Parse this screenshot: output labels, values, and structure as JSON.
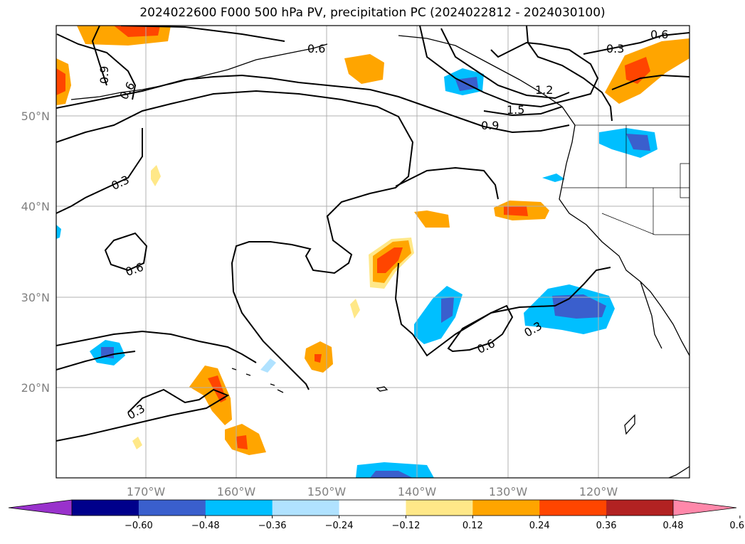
{
  "title": "2024022600 F000 500 hPa PV, precipitation PC (2024022812 - 2024030100)",
  "map": {
    "lon_range": [
      -180,
      -110
    ],
    "lat_range": [
      10,
      60
    ],
    "lon_ticks": [
      "170°W",
      "160°W",
      "150°W",
      "140°W",
      "130°W",
      "120°W"
    ],
    "lat_ticks": [
      "50°N",
      "40°N",
      "30°N",
      "20°N"
    ],
    "grid": true,
    "contour_labels": [
      "0.6",
      "0.9",
      "0.6",
      "0.3",
      "1.2",
      "1.5",
      "0.9",
      "0.3",
      "0.6",
      "0.6",
      "0.3",
      "0.3",
      "0.6",
      "0.6"
    ]
  },
  "colorbar": {
    "ticks": [
      "−0.60",
      "−0.48",
      "−0.36",
      "−0.24",
      "−0.12",
      "0.12",
      "0.24",
      "0.36",
      "0.48",
      "0.60"
    ],
    "colors": [
      "#9932cc",
      "#00008b",
      "#3a5fcd",
      "#00bfff",
      "#b0e2ff",
      "#ffffff",
      "#ffe888",
      "#ffa500",
      "#ff4500",
      "#b22222",
      "#ff88aa"
    ],
    "extend": "both"
  }
}
